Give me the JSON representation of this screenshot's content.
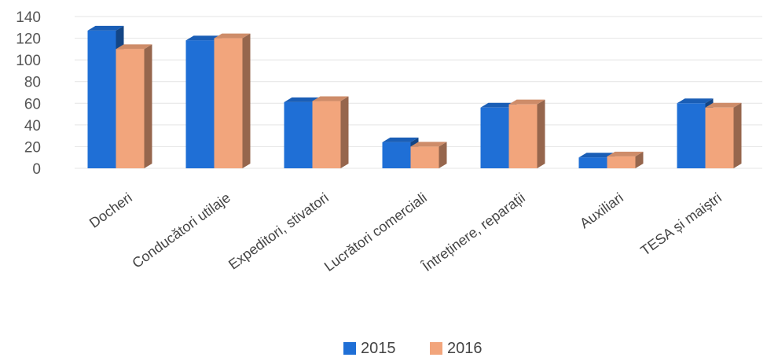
{
  "chart_data": {
    "type": "bar",
    "title": "",
    "xlabel": "",
    "ylabel": "",
    "ylim": [
      0,
      140
    ],
    "y_ticks": [
      0,
      20,
      40,
      60,
      80,
      100,
      120,
      140
    ],
    "grid": true,
    "legend_position": "bottom",
    "categories": [
      "Docheri",
      "Conducători utilaje",
      "Expeditori, stivatori",
      "Lucrători comerciali",
      "Întreținere, reparații",
      "Auxiliari",
      "TESA și maiștri"
    ],
    "series": [
      {
        "name": "2015",
        "color": "#1f6fd6",
        "values": [
          127,
          118,
          61,
          24,
          56,
          10,
          60
        ]
      },
      {
        "name": "2016",
        "color": "#f2a57c",
        "values": [
          110,
          120,
          62,
          20,
          59,
          11,
          56
        ]
      }
    ]
  }
}
